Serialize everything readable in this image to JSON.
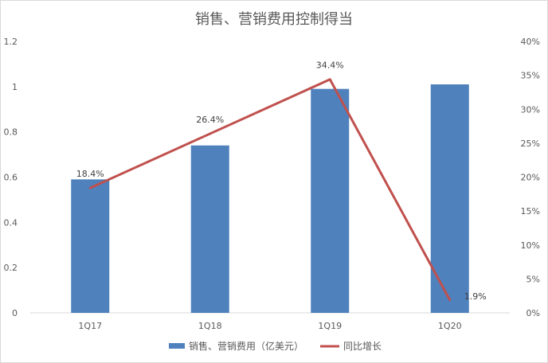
{
  "chart_data": {
    "type": "bar",
    "title": "销售、营销费用控制得当",
    "categories": [
      "1Q17",
      "1Q18",
      "1Q19",
      "1Q20"
    ],
    "series": [
      {
        "name": "销售、营销费用（亿美元）",
        "type": "bar",
        "axis": "left",
        "color": "#4f81bd",
        "values": [
          0.59,
          0.74,
          0.99,
          1.01
        ]
      },
      {
        "name": "同比增长",
        "type": "line",
        "axis": "right",
        "color": "#c0504d",
        "values": [
          18.4,
          26.4,
          34.4,
          1.9
        ],
        "labels": [
          "18.4%",
          "26.4%",
          "34.4%",
          "1.9%"
        ]
      }
    ],
    "y_left": {
      "ylim": [
        0,
        1.2
      ],
      "ticks": [
        0,
        0.2,
        0.4,
        0.6,
        0.8,
        1,
        1.2
      ],
      "tick_labels": [
        "0",
        "0.2",
        "0.4",
        "0.6",
        "0.8",
        "1",
        "1.2"
      ]
    },
    "y_right": {
      "ylim": [
        0,
        40
      ],
      "ticks": [
        0,
        5,
        10,
        15,
        20,
        25,
        30,
        35,
        40
      ],
      "tick_labels": [
        "0%",
        "5%",
        "10%",
        "15%",
        "20%",
        "25%",
        "30%",
        "35%",
        "40%"
      ]
    },
    "grid": false,
    "legend": "bottom-center"
  }
}
